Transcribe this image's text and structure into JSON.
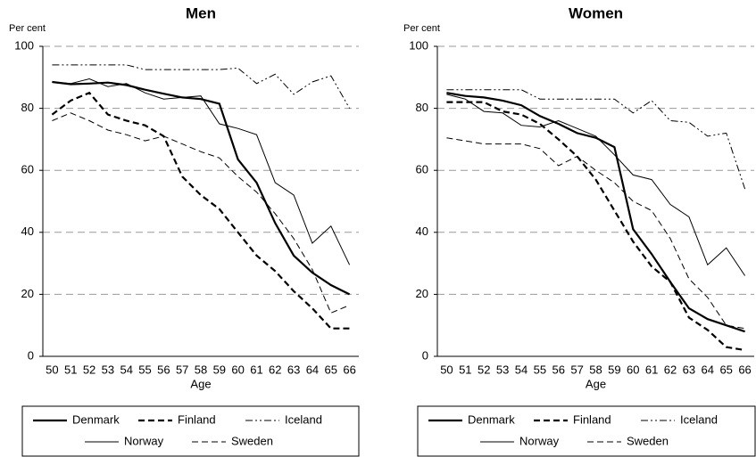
{
  "chart_data": [
    {
      "type": "line",
      "title": "Men",
      "y_label": "Per cent",
      "x_label": "Age",
      "categories": [
        "50",
        "51",
        "52",
        "53",
        "54",
        "55",
        "56",
        "57",
        "58",
        "59",
        "60",
        "61",
        "62",
        "63",
        "64",
        "65",
        "66"
      ],
      "ylim": [
        0,
        100
      ],
      "yticks": [
        0,
        20,
        40,
        60,
        80,
        100
      ],
      "grid": true,
      "series": [
        {
          "name": "Denmark",
          "color": "#000000",
          "style": "solid",
          "width": "thick",
          "values": [
            88.5,
            87.8,
            88,
            88.3,
            87.5,
            86,
            84.7,
            83.5,
            83,
            81.5,
            63.5,
            56,
            43,
            32.5,
            27,
            23,
            20
          ]
        },
        {
          "name": "Finland",
          "color": "#000000",
          "style": "dashed",
          "width": "thick",
          "values": [
            78,
            82.5,
            85,
            78,
            76,
            74.5,
            71,
            58,
            52,
            47.5,
            40,
            32.5,
            27.5,
            21,
            15.5,
            9,
            9
          ]
        },
        {
          "name": "Iceland",
          "color": "#000000",
          "style": "dashdotdot",
          "width": "thin",
          "values": [
            94,
            94,
            94,
            94,
            94,
            92.5,
            92.5,
            92.5,
            92.5,
            92.5,
            93,
            88,
            91,
            84.5,
            88.5,
            90.5,
            80
          ]
        },
        {
          "name": "Norway",
          "color": "#000000",
          "style": "solid",
          "width": "thin",
          "values": [
            88.5,
            88,
            89.5,
            87,
            88,
            85,
            83,
            83.5,
            84,
            75,
            73.5,
            71.5,
            56,
            52,
            36.5,
            42,
            29.5
          ]
        },
        {
          "name": "Sweden",
          "color": "#000000",
          "style": "dashed",
          "width": "thin",
          "values": [
            76,
            78.5,
            76,
            73,
            71.5,
            69.5,
            71,
            68.5,
            66,
            64,
            58,
            53,
            46,
            38,
            28,
            14,
            16.5
          ]
        }
      ]
    },
    {
      "type": "line",
      "title": "Women",
      "y_label": "Per cent",
      "x_label": "Age",
      "categories": [
        "50",
        "51",
        "52",
        "53",
        "54",
        "55",
        "56",
        "57",
        "58",
        "59",
        "60",
        "61",
        "62",
        "63",
        "64",
        "65",
        "66"
      ],
      "ylim": [
        0,
        100
      ],
      "yticks": [
        0,
        20,
        40,
        60,
        80,
        100
      ],
      "grid": true,
      "series": [
        {
          "name": "Denmark",
          "color": "#000000",
          "style": "solid",
          "width": "thick",
          "values": [
            85,
            84,
            83.5,
            82.5,
            81,
            77.5,
            75,
            72,
            70.5,
            67.5,
            41,
            33,
            24,
            15.5,
            12,
            10,
            8
          ]
        },
        {
          "name": "Finland",
          "color": "#000000",
          "style": "dashed",
          "width": "thick",
          "values": [
            82,
            82,
            82,
            79,
            78,
            75,
            70,
            64.5,
            57,
            47,
            37,
            29,
            24,
            12.5,
            8.5,
            3,
            2
          ]
        },
        {
          "name": "Iceland",
          "color": "#000000",
          "style": "dashdotdot",
          "width": "thin",
          "values": [
            86,
            86,
            86,
            86,
            86,
            83,
            83,
            83,
            83,
            83,
            78.5,
            82.5,
            76,
            75.5,
            71,
            72,
            54
          ]
        },
        {
          "name": "Norway",
          "color": "#000000",
          "style": "solid",
          "width": "thin",
          "values": [
            84.5,
            83,
            79,
            78.5,
            74.5,
            74,
            76,
            73.5,
            71,
            65,
            58.5,
            57,
            49,
            45,
            29.5,
            35,
            26
          ]
        },
        {
          "name": "Sweden",
          "color": "#000000",
          "style": "dashed",
          "width": "thin",
          "values": [
            70.5,
            69.5,
            68.5,
            68.5,
            68.5,
            67,
            61.5,
            64.5,
            60,
            56,
            50,
            47,
            38,
            25,
            19,
            10,
            9
          ]
        }
      ]
    }
  ]
}
